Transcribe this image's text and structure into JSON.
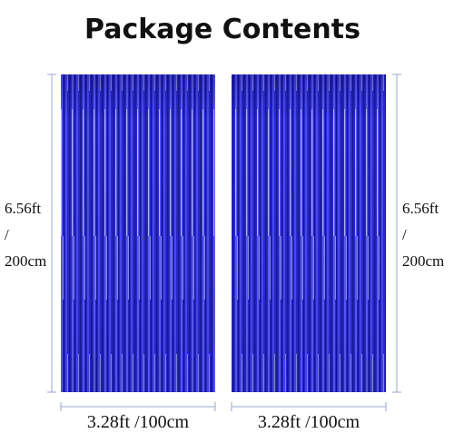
{
  "title": "Package Contents",
  "curtains": [
    {
      "height": [
        "6.56ft",
        "/",
        "200cm"
      ],
      "width": "3.28ft /100cm"
    },
    {
      "height": [
        "6.56ft",
        "/",
        "200cm"
      ],
      "width": "3.28ft /100cm"
    }
  ]
}
